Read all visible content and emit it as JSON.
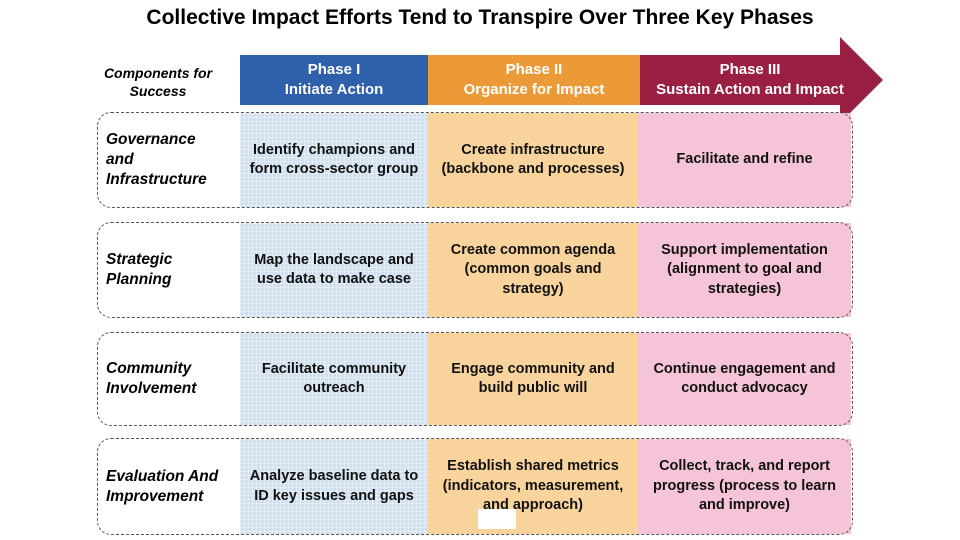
{
  "title": "Collective Impact Efforts Tend to Transpire Over Three Key Phases",
  "header": {
    "components_label": "Components for Success",
    "phases": [
      {
        "name": "Phase I",
        "subtitle": "Initiate Action"
      },
      {
        "name": "Phase II",
        "subtitle": "Organize for Impact"
      },
      {
        "name": "Phase III",
        "subtitle": "Sustain Action and Impact"
      }
    ]
  },
  "rows": [
    {
      "component": "Governance and Infrastructure",
      "cells": [
        "Identify champions and form cross-sector group",
        "Create infrastructure (backbone and processes)",
        "Facilitate and refine"
      ]
    },
    {
      "component": "Strategic Planning",
      "cells": [
        "Map the landscape and use data to make case",
        "Create common agenda (common goals and strategy)",
        "Support implementation (alignment to goal and strategies)"
      ]
    },
    {
      "component": "Community Involvement",
      "cells": [
        "Facilitate community outreach",
        "Engage community and build public will",
        "Continue engagement and conduct advocacy"
      ]
    },
    {
      "component": "Evaluation And Improvement",
      "cells": [
        "Analyze baseline data to ID key issues and gaps",
        "Establish shared metrics (indicators, measurement, and approach)",
        "Collect, track, and report progress (process to learn and improve)"
      ]
    }
  ]
}
